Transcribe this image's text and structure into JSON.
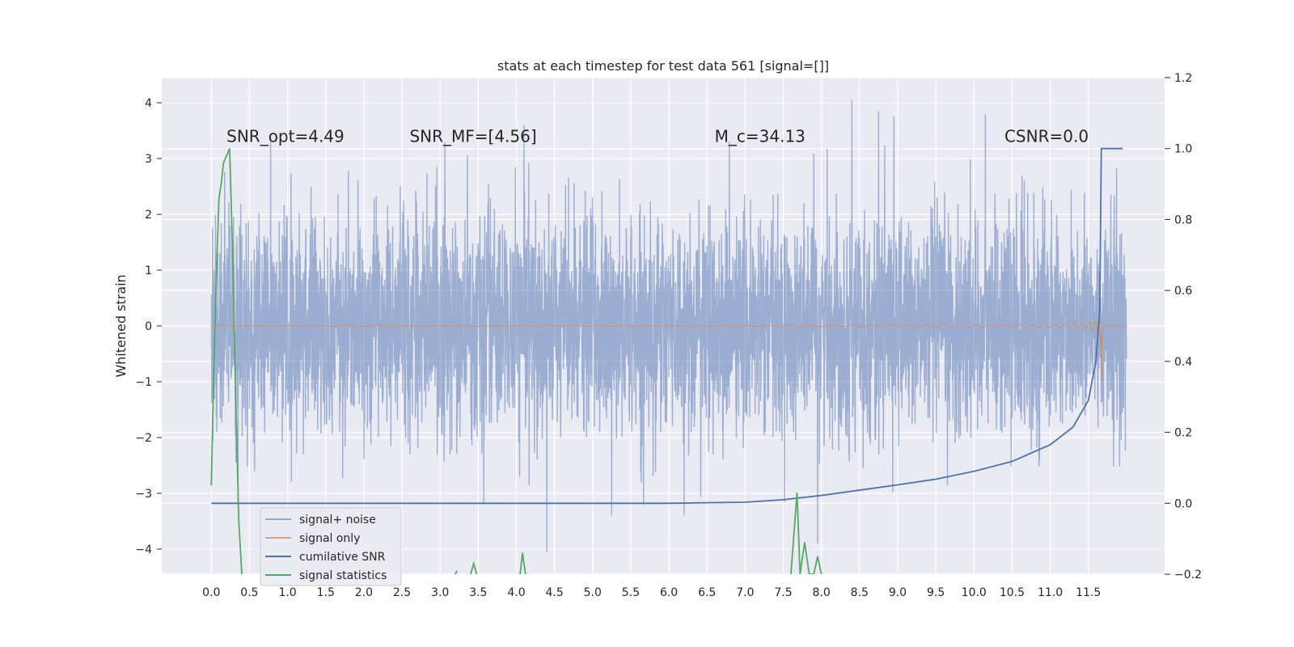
{
  "chart_data": {
    "type": "line",
    "title": "stats at each timestep for test data 561 [signal=[]]",
    "xlabel": "",
    "ylabel": "Whitened strain",
    "xlim": [
      -0.65,
      12.5
    ],
    "ylim": [
      -4.45,
      4.45
    ],
    "y2lim": [
      -0.2,
      1.2
    ],
    "x_ticks": [
      "0.0",
      "0.5",
      "1.0",
      "1.5",
      "2.0",
      "2.5",
      "3.0",
      "3.5",
      "4.0",
      "4.5",
      "5.0",
      "5.5",
      "6.0",
      "6.5",
      "7.0",
      "7.5",
      "8.0",
      "8.5",
      "9.0",
      "9.5",
      "10.0",
      "10.5",
      "11.0",
      "11.5"
    ],
    "y_ticks": [
      "4",
      "3",
      "2",
      "1",
      "0",
      "−1",
      "−2",
      "−3",
      "−4"
    ],
    "y2_ticks": [
      "1.2",
      "1.0",
      "0.8",
      "0.6",
      "0.4",
      "0.2",
      "0.0",
      "−0.2"
    ],
    "grid": true,
    "legend_position": "lower-left",
    "colors": {
      "noise": "#4c72b0",
      "signal": "#dd8452",
      "cumsnr": "#4c72b0",
      "stats": "#55a868",
      "plot_bg": "#eaeaf2",
      "grid": "#ffffff"
    },
    "annotations": [
      {
        "text": "SNR_opt=4.49",
        "x": 0.2,
        "y": 3.3
      },
      {
        "text": "SNR_MF=[4.56]",
        "x": 2.6,
        "y": 3.3
      },
      {
        "text": "M_c=34.13",
        "x": 6.6,
        "y": 3.3
      },
      {
        "text": "CSNR=0.0",
        "x": 10.4,
        "y": 3.3
      }
    ],
    "series": [
      {
        "name": "signal+ noise",
        "axis": "left",
        "description_note": "dense white-noise strain, sigma ~0.95, t in [0, 12]",
        "x_range": [
          0,
          12
        ],
        "approx_envelope": [
          -2.3,
          2.3
        ],
        "notable_peaks": [
          {
            "x": 8.4,
            "y": 4.05
          },
          {
            "x": 4.1,
            "y": 3.6
          },
          {
            "x": 8.75,
            "y": 3.85
          },
          {
            "x": 8.95,
            "y": 3.75
          },
          {
            "x": 10.15,
            "y": 3.8
          },
          {
            "x": 4.4,
            "y": -4.05
          },
          {
            "x": 7.95,
            "y": -3.9
          },
          {
            "x": 6.2,
            "y": -3.4
          },
          {
            "x": 5.25,
            "y": -3.4
          }
        ]
      },
      {
        "name": "signal only",
        "axis": "left",
        "chirp_peak_time": 11.67,
        "chirp_peak_amplitude": 0.95,
        "chirp_min_amplitude": -1.0
      },
      {
        "name": "cumilative SNR",
        "axis": "right",
        "x": [
          0.0,
          6.0,
          7.0,
          7.5,
          8.0,
          8.5,
          9.0,
          9.5,
          10.0,
          10.5,
          11.0,
          11.3,
          11.5,
          11.6,
          11.65,
          11.67,
          11.8,
          11.95
        ],
        "y": [
          0.0,
          0.0,
          0.003,
          0.01,
          0.022,
          0.037,
          0.052,
          0.068,
          0.09,
          0.118,
          0.165,
          0.215,
          0.29,
          0.4,
          0.55,
          1.0,
          1.0,
          1.0
        ]
      },
      {
        "name": "signal statistics",
        "axis": "right",
        "segments": [
          {
            "x": [
              0.0,
              0.03,
              0.06,
              0.1,
              0.13,
              0.16,
              0.2,
              0.24,
              0.28,
              0.32,
              0.36,
              0.4
            ],
            "y": [
              0.05,
              0.35,
              0.6,
              0.86,
              0.9,
              0.96,
              0.98,
              1.0,
              0.7,
              0.3,
              -0.05,
              -0.2
            ]
          },
          {
            "x": [
              3.2,
              3.22
            ],
            "y": [
              -0.2,
              -0.19
            ]
          },
          {
            "x": [
              3.4,
              3.44,
              3.48
            ],
            "y": [
              -0.2,
              -0.17,
              -0.2
            ]
          },
          {
            "x": [
              4.05,
              4.08,
              4.12
            ],
            "y": [
              -0.2,
              -0.14,
              -0.2
            ]
          },
          {
            "x": [
              7.6,
              7.68,
              7.72,
              7.78,
              7.84,
              7.9,
              7.95,
              8.0
            ],
            "y": [
              -0.2,
              0.03,
              -0.2,
              -0.11,
              -0.2,
              -0.2,
              -0.15,
              -0.2
            ]
          }
        ]
      }
    ]
  }
}
